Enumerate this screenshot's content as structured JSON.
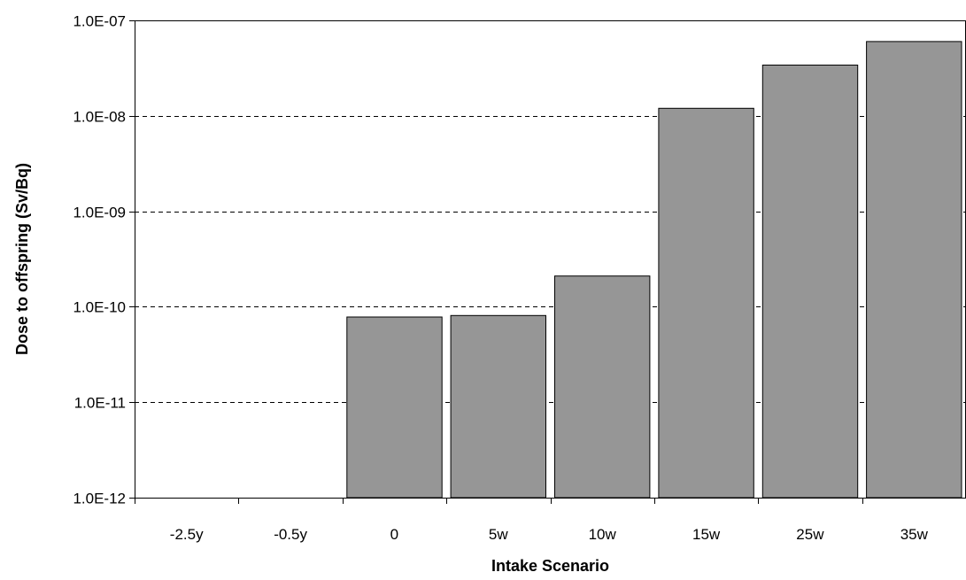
{
  "chart_data": {
    "type": "bar",
    "title": "",
    "xlabel": "Intake Scenario",
    "ylabel": "Dose to offspring (Sv/Bq)",
    "yscale": "log",
    "ylim": [
      1e-12,
      1e-07
    ],
    "y_ticks": [
      1e-12,
      1e-11,
      1e-10,
      1e-09,
      1e-08,
      1e-07
    ],
    "y_tick_labels": [
      "1.0E-12",
      "1.0E-11",
      "1.0E-10",
      "1.0E-09",
      "1.0E-08",
      "1.0E-07"
    ],
    "categories": [
      "-2.5y",
      "-0.5y",
      "0",
      "5w",
      "10w",
      "15w",
      "25w",
      "35w"
    ],
    "values": [
      null,
      null,
      7.8e-11,
      8.1e-11,
      2.1e-10,
      1.2e-08,
      3.4e-08,
      6e-08
    ],
    "grid": "horizontal dashed",
    "legend": "none",
    "colors": {
      "bar_fill": "#969696",
      "bar_stroke": "#000000",
      "grid": "#000000"
    }
  }
}
